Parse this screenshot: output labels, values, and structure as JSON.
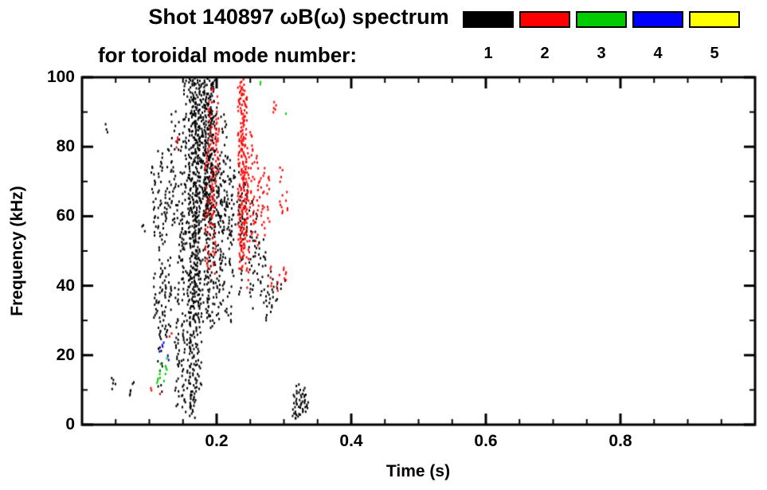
{
  "chart_data": {
    "type": "scatter",
    "title": "Shot 140897 ωB(ω) spectrum",
    "subtitle": "for toroidal mode number:",
    "xlabel": "Time (s)",
    "ylabel": "Frequency (kHz)",
    "xlim": [
      0.0,
      1.0
    ],
    "ylim": [
      0,
      100
    ],
    "grid": false,
    "legend_position": "top-right",
    "xticks": [
      {
        "v": 0.2,
        "label": "0.2"
      },
      {
        "v": 0.4,
        "label": "0.4"
      },
      {
        "v": 0.6,
        "label": "0.6"
      },
      {
        "v": 0.8,
        "label": "0.8"
      }
    ],
    "yticks": [
      {
        "v": 0,
        "label": "0"
      },
      {
        "v": 20,
        "label": "20"
      },
      {
        "v": 40,
        "label": "40"
      },
      {
        "v": 60,
        "label": "60"
      },
      {
        "v": 80,
        "label": "80"
      },
      {
        "v": 100,
        "label": "100"
      }
    ],
    "x_minor_step": 0.05,
    "y_minor_step": 10,
    "legend": [
      {
        "label": "1",
        "color": "#000000"
      },
      {
        "label": "2",
        "color": "#ff0000"
      },
      {
        "label": "3",
        "color": "#00cc00"
      },
      {
        "label": "4",
        "color": "#0000ff"
      },
      {
        "label": "5",
        "color": "#ffff00"
      }
    ],
    "segment_format": [
      "time_s",
      "freq_min_kHz",
      "freq_max_kHz",
      "jitter_px",
      "density"
    ],
    "series": [
      {
        "name": "mode 1",
        "color": "#000000",
        "segments": [
          [
            0.035,
            84,
            87,
            2,
            0.5
          ],
          [
            0.045,
            10,
            14,
            2,
            0.55
          ],
          [
            0.05,
            11,
            13,
            2,
            0.45
          ],
          [
            0.07,
            8,
            11,
            2,
            0.5
          ],
          [
            0.075,
            12,
            14,
            2,
            0.4
          ],
          [
            0.09,
            56,
            59,
            2,
            0.5
          ],
          [
            0.105,
            55,
            75,
            3,
            0.5
          ],
          [
            0.108,
            30,
            45,
            3,
            0.5
          ],
          [
            0.115,
            10,
            80,
            3,
            0.55
          ],
          [
            0.122,
            25,
            70,
            3,
            0.5
          ],
          [
            0.128,
            60,
            80,
            3,
            0.55
          ],
          [
            0.13,
            28,
            50,
            3,
            0.5
          ],
          [
            0.135,
            55,
            92,
            3,
            0.5
          ],
          [
            0.14,
            5,
            40,
            3,
            0.5
          ],
          [
            0.145,
            40,
            88,
            4,
            0.6
          ],
          [
            0.15,
            3,
            60,
            3,
            0.5
          ],
          [
            0.155,
            50,
            100,
            4,
            0.6
          ],
          [
            0.158,
            5,
            45,
            3,
            0.5
          ],
          [
            0.163,
            2,
            100,
            5,
            0.8
          ],
          [
            0.168,
            30,
            100,
            5,
            0.8
          ],
          [
            0.172,
            10,
            95,
            4,
            0.6
          ],
          [
            0.178,
            55,
            100,
            5,
            0.75
          ],
          [
            0.182,
            30,
            90,
            4,
            0.6
          ],
          [
            0.186,
            60,
            100,
            5,
            0.8
          ],
          [
            0.19,
            28,
            100,
            5,
            0.7
          ],
          [
            0.195,
            55,
            100,
            4,
            0.6
          ],
          [
            0.2,
            30,
            78,
            4,
            0.6
          ],
          [
            0.205,
            55,
            75,
            4,
            0.6
          ],
          [
            0.21,
            32,
            90,
            4,
            0.55
          ],
          [
            0.215,
            55,
            78,
            4,
            0.6
          ],
          [
            0.22,
            30,
            72,
            4,
            0.55
          ],
          [
            0.228,
            58,
            75,
            4,
            0.6
          ],
          [
            0.235,
            38,
            70,
            3,
            0.5
          ],
          [
            0.242,
            55,
            70,
            3,
            0.5
          ],
          [
            0.25,
            33,
            65,
            3,
            0.5
          ],
          [
            0.258,
            42,
            62,
            3,
            0.5
          ],
          [
            0.265,
            35,
            55,
            3,
            0.45
          ],
          [
            0.272,
            30,
            50,
            3,
            0.45
          ],
          [
            0.28,
            33,
            46,
            3,
            0.45
          ],
          [
            0.288,
            36,
            43,
            2,
            0.4
          ],
          [
            0.295,
            39,
            42,
            2,
            0.4
          ],
          [
            0.3,
            40,
            42,
            2,
            0.35
          ],
          [
            0.315,
            3,
            10,
            3,
            0.6
          ],
          [
            0.32,
            2,
            12,
            4,
            0.7
          ],
          [
            0.325,
            3,
            11,
            4,
            0.7
          ],
          [
            0.33,
            4,
            9,
            3,
            0.6
          ],
          [
            0.335,
            5,
            8,
            2,
            0.5
          ]
        ]
      },
      {
        "name": "mode 2",
        "color": "#ff0000",
        "segments": [
          [
            0.1,
            8,
            11,
            2,
            0.4
          ],
          [
            0.115,
            6,
            9,
            2,
            0.4
          ],
          [
            0.13,
            24,
            27,
            2,
            0.4
          ],
          [
            0.14,
            80,
            83,
            2,
            0.4
          ],
          [
            0.185,
            45,
            92,
            3,
            0.5
          ],
          [
            0.19,
            60,
            100,
            3,
            0.5
          ],
          [
            0.195,
            42,
            88,
            3,
            0.5
          ],
          [
            0.2,
            70,
            95,
            2,
            0.4
          ],
          [
            0.235,
            45,
            100,
            4,
            0.7
          ],
          [
            0.24,
            50,
            98,
            4,
            0.7
          ],
          [
            0.245,
            40,
            80,
            3,
            0.5
          ],
          [
            0.252,
            55,
            85,
            3,
            0.5
          ],
          [
            0.26,
            50,
            78,
            3,
            0.5
          ],
          [
            0.268,
            55,
            75,
            3,
            0.45
          ],
          [
            0.275,
            58,
            72,
            2,
            0.4
          ],
          [
            0.28,
            38,
            46,
            2,
            0.45
          ],
          [
            0.285,
            85,
            95,
            2,
            0.4
          ],
          [
            0.29,
            39,
            44,
            2,
            0.4
          ],
          [
            0.295,
            60,
            75,
            2,
            0.4
          ],
          [
            0.3,
            42,
            46,
            2,
            0.4
          ],
          [
            0.302,
            62,
            68,
            2,
            0.35
          ]
        ]
      },
      {
        "name": "mode 3",
        "color": "#00cc00",
        "segments": [
          [
            0.1,
            11,
            12,
            2,
            0.35
          ],
          [
            0.112,
            12,
            15,
            2,
            0.5
          ],
          [
            0.118,
            13,
            19,
            3,
            0.6
          ],
          [
            0.124,
            15,
            20,
            2,
            0.5
          ],
          [
            0.262,
            96,
            100,
            2,
            0.4
          ],
          [
            0.3,
            88,
            90,
            2,
            0.3
          ]
        ]
      },
      {
        "name": "mode 4",
        "color": "#0000ff",
        "segments": [
          [
            0.114,
            21,
            23,
            2,
            0.4
          ],
          [
            0.12,
            22,
            24,
            2,
            0.4
          ],
          [
            0.128,
            19,
            21,
            2,
            0.35
          ]
        ]
      },
      {
        "name": "mode 5",
        "color": "#ffff00",
        "segments": []
      }
    ]
  }
}
